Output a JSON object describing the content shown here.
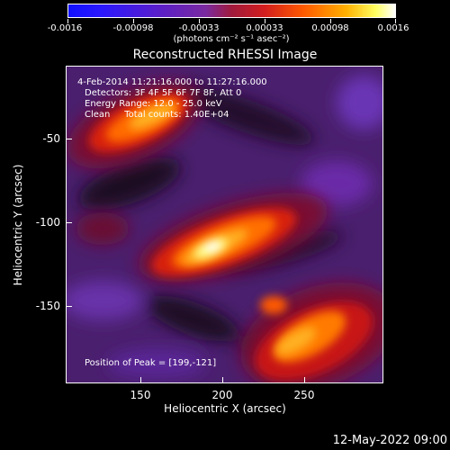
{
  "colorbar": {
    "tick_labels": [
      "-0.0016",
      "-0.00098",
      "-0.00033",
      "0.00033",
      "0.00098",
      "0.0016"
    ],
    "units": "(photons cm⁻² s⁻¹ asec⁻²)"
  },
  "title": "Reconstructed RHESSI Image",
  "info": {
    "time": "4-Feb-2014 11:21:16.000 to 11:27:16.000",
    "detectors": "Detectors: 3F 4F 5F 6F 7F 8F, Att 0",
    "energy": "Energy Range: 12.0 - 25.0 keV",
    "clean": "Clean     Total counts: 1.40E+04",
    "peak": "Position of Peak = [199,-121]"
  },
  "axes": {
    "xlabel": "Heliocentric X (arcsec)",
    "ylabel": "Heliocentric Y (arcsec)",
    "xticks": [
      "150",
      "200",
      "250"
    ],
    "yticks": [
      "-50",
      "-100",
      "-150"
    ],
    "xrange": [
      105,
      295
    ],
    "yrange": [
      -195,
      -25
    ]
  },
  "footer": "12-May-2022 09:00",
  "colors": {
    "background": "#000000",
    "text": "#ffffff"
  }
}
